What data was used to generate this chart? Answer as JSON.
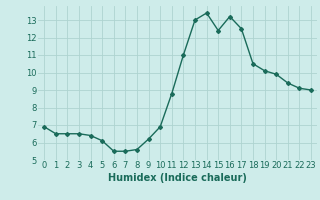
{
  "x": [
    0,
    1,
    2,
    3,
    4,
    5,
    6,
    7,
    8,
    9,
    10,
    11,
    12,
    13,
    14,
    15,
    16,
    17,
    18,
    19,
    20,
    21,
    22,
    23
  ],
  "y": [
    6.9,
    6.5,
    6.5,
    6.5,
    6.4,
    6.1,
    5.5,
    5.5,
    5.6,
    6.2,
    6.9,
    8.8,
    11.0,
    13.0,
    13.4,
    12.4,
    13.2,
    12.5,
    10.5,
    10.1,
    9.9,
    9.4,
    9.1,
    9.0
  ],
  "line_color": "#1a6b5a",
  "marker": "D",
  "marker_size": 2.0,
  "bg_color": "#ceecea",
  "grid_color": "#aed4d0",
  "xlabel": "Humidex (Indice chaleur)",
  "ylim": [
    5,
    13.8
  ],
  "xlim": [
    -0.5,
    23.5
  ],
  "yticks": [
    5,
    6,
    7,
    8,
    9,
    10,
    11,
    12,
    13
  ],
  "xticks": [
    0,
    1,
    2,
    3,
    4,
    5,
    6,
    7,
    8,
    9,
    10,
    11,
    12,
    13,
    14,
    15,
    16,
    17,
    18,
    19,
    20,
    21,
    22,
    23
  ],
  "tick_fontsize": 6,
  "xlabel_fontsize": 7,
  "line_width": 1.0
}
